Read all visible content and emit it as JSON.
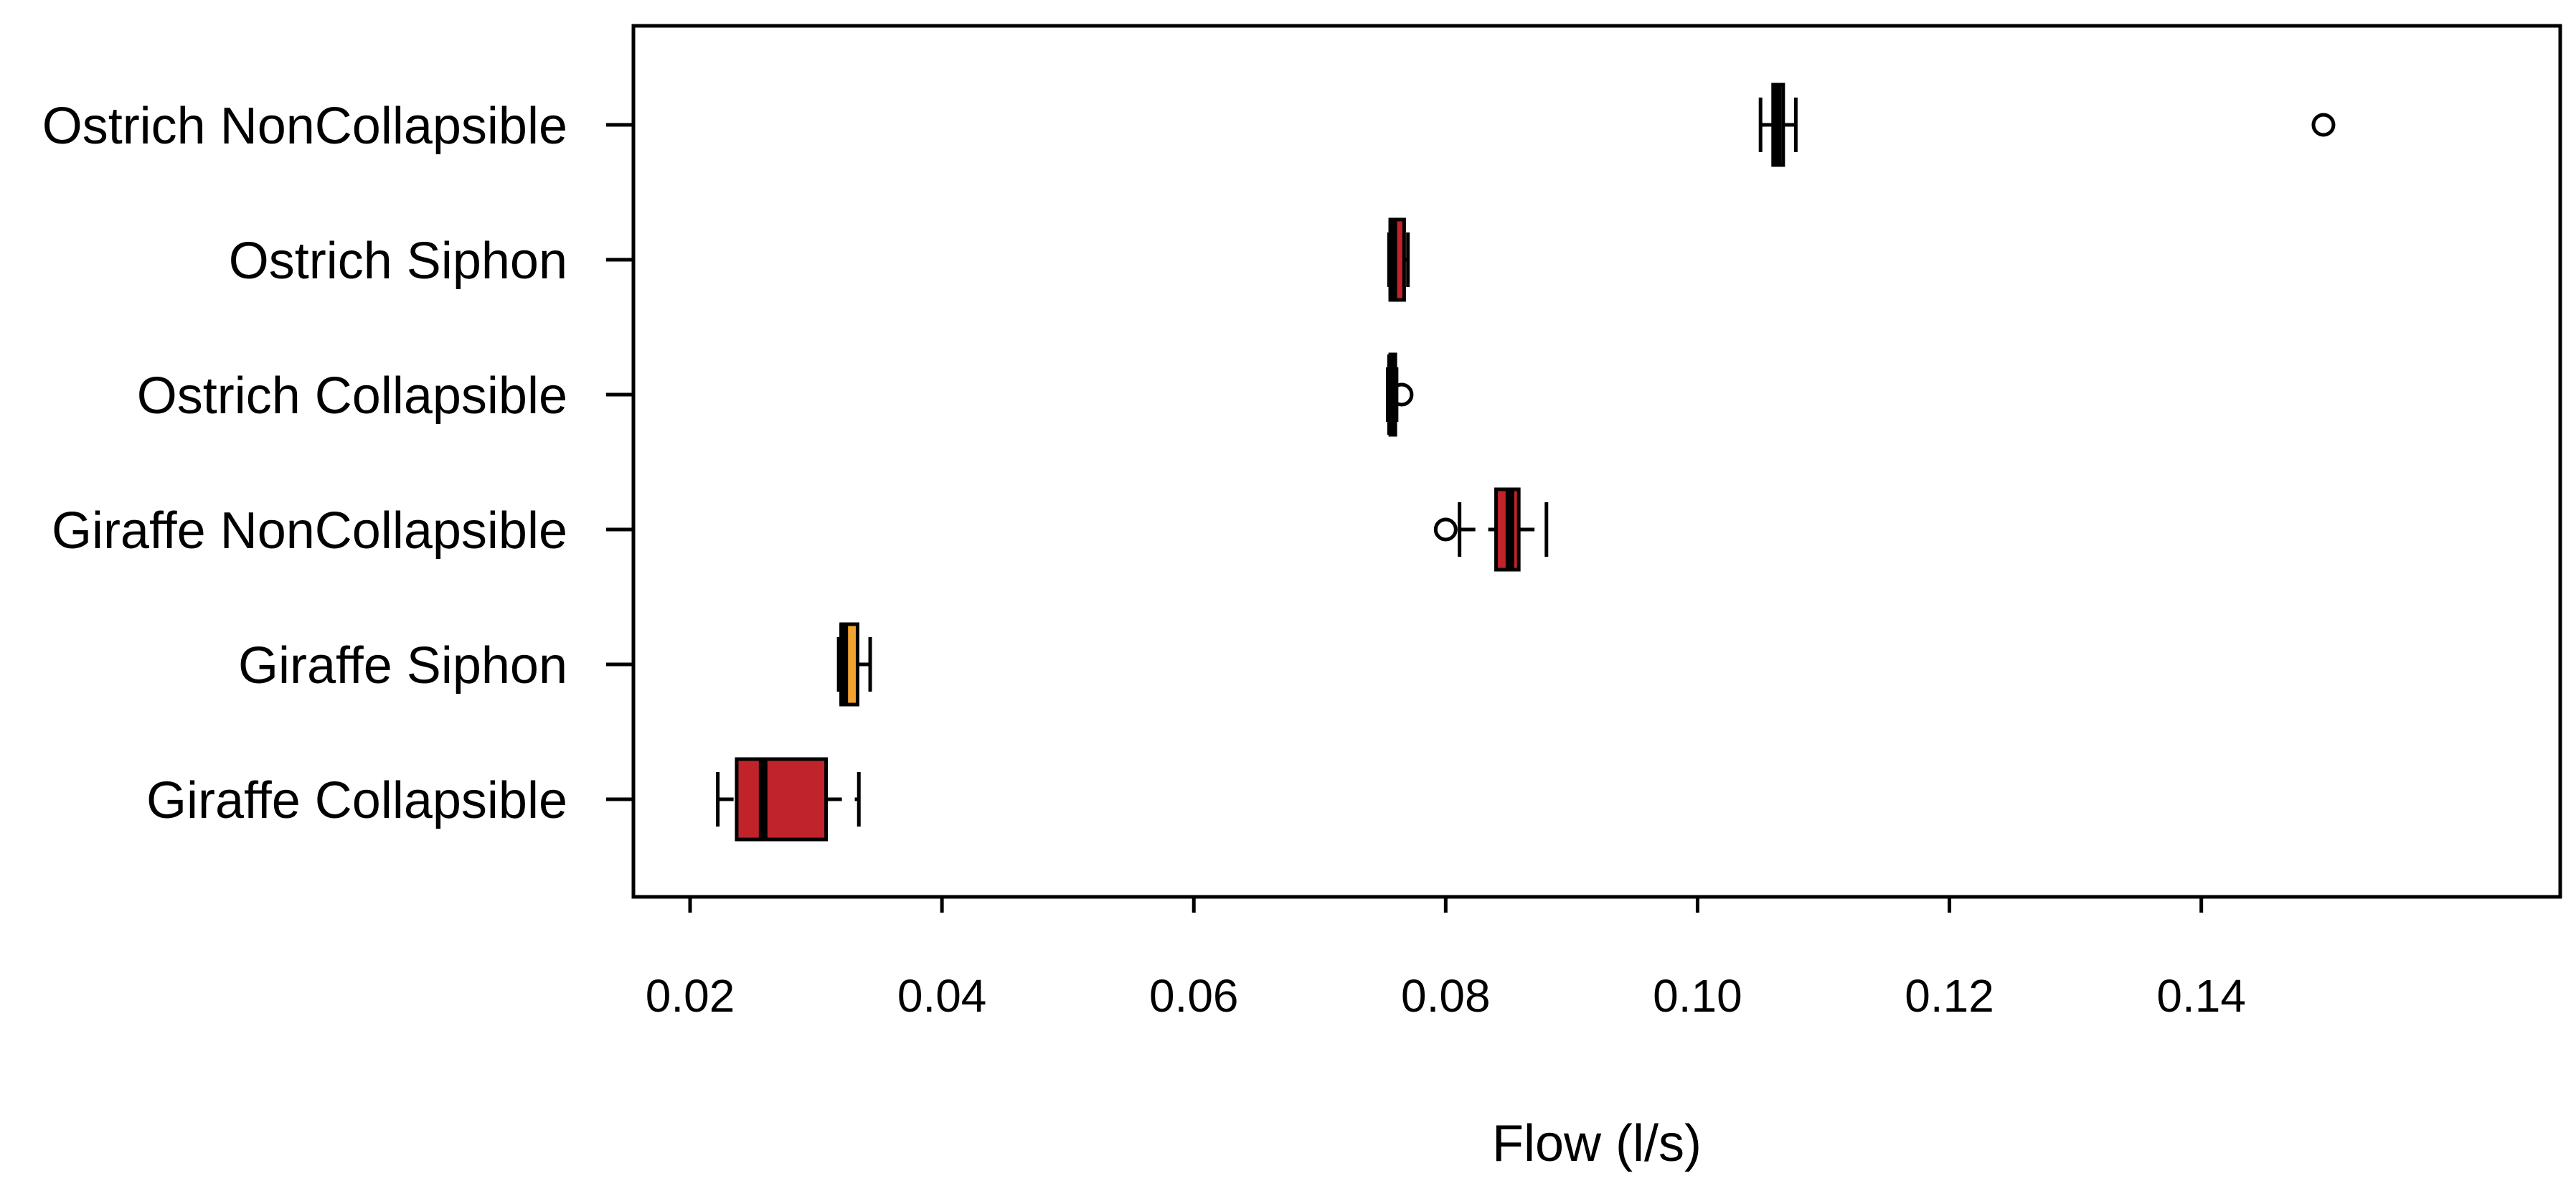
{
  "chart_data": {
    "type": "boxplot",
    "orientation": "horizontal",
    "title": "",
    "xlabel": "Flow (l/s)",
    "ylabel": "",
    "xlim": [
      0.0155,
      0.1685
    ],
    "x_ticks": [
      0.02,
      0.04,
      0.06,
      0.08,
      0.1,
      0.12,
      0.14
    ],
    "x_tick_labels": [
      "0.02",
      "0.04",
      "0.06",
      "0.08",
      "0.10",
      "0.12",
      "0.14"
    ],
    "grid": false,
    "legend": "none",
    "categories": [
      "Giraffe Collapsible",
      "Giraffe Siphon",
      "Giraffe NonCollapsible",
      "Ostrich Collapsible",
      "Ostrich Siphon",
      "Ostrich NonCollapsible"
    ],
    "boxes": [
      {
        "name": "Giraffe Collapsible",
        "whisker_low": 0.0222,
        "q1": 0.0237,
        "median": 0.0258,
        "q3": 0.0308,
        "whisker_high": 0.0334,
        "outliers": [],
        "color": "#c0242a"
      },
      {
        "name": "Giraffe Siphon",
        "whisker_low": 0.0318,
        "q1": 0.032,
        "median": 0.0322,
        "q3": 0.0333,
        "whisker_high": 0.0343,
        "outliers": [],
        "color": "#f2a22f"
      },
      {
        "name": "Giraffe NonCollapsible",
        "whisker_low": 0.0811,
        "q1": 0.084,
        "median": 0.0851,
        "q3": 0.0858,
        "whisker_high": 0.088,
        "outliers": [
          0.08
        ],
        "color": "#c0242a"
      },
      {
        "name": "Ostrich Collapsible",
        "whisker_low": 0.0754,
        "q1": 0.0756,
        "median": 0.0757,
        "q3": 0.076,
        "whisker_high": 0.0761,
        "outliers": [
          0.0765
        ],
        "color": "#c0242a"
      },
      {
        "name": "Ostrich Siphon",
        "whisker_low": 0.0755,
        "q1": 0.0756,
        "median": 0.0758,
        "q3": 0.0767,
        "whisker_high": 0.077,
        "outliers": [],
        "color": "#c0242a"
      },
      {
        "name": "Ostrich NonCollapsible",
        "whisker_low": 0.105,
        "q1": 0.106,
        "median": 0.1063,
        "q3": 0.1068,
        "whisker_high": 0.1078,
        "outliers": [
          0.1497
        ],
        "color": "#c0242a"
      }
    ]
  }
}
